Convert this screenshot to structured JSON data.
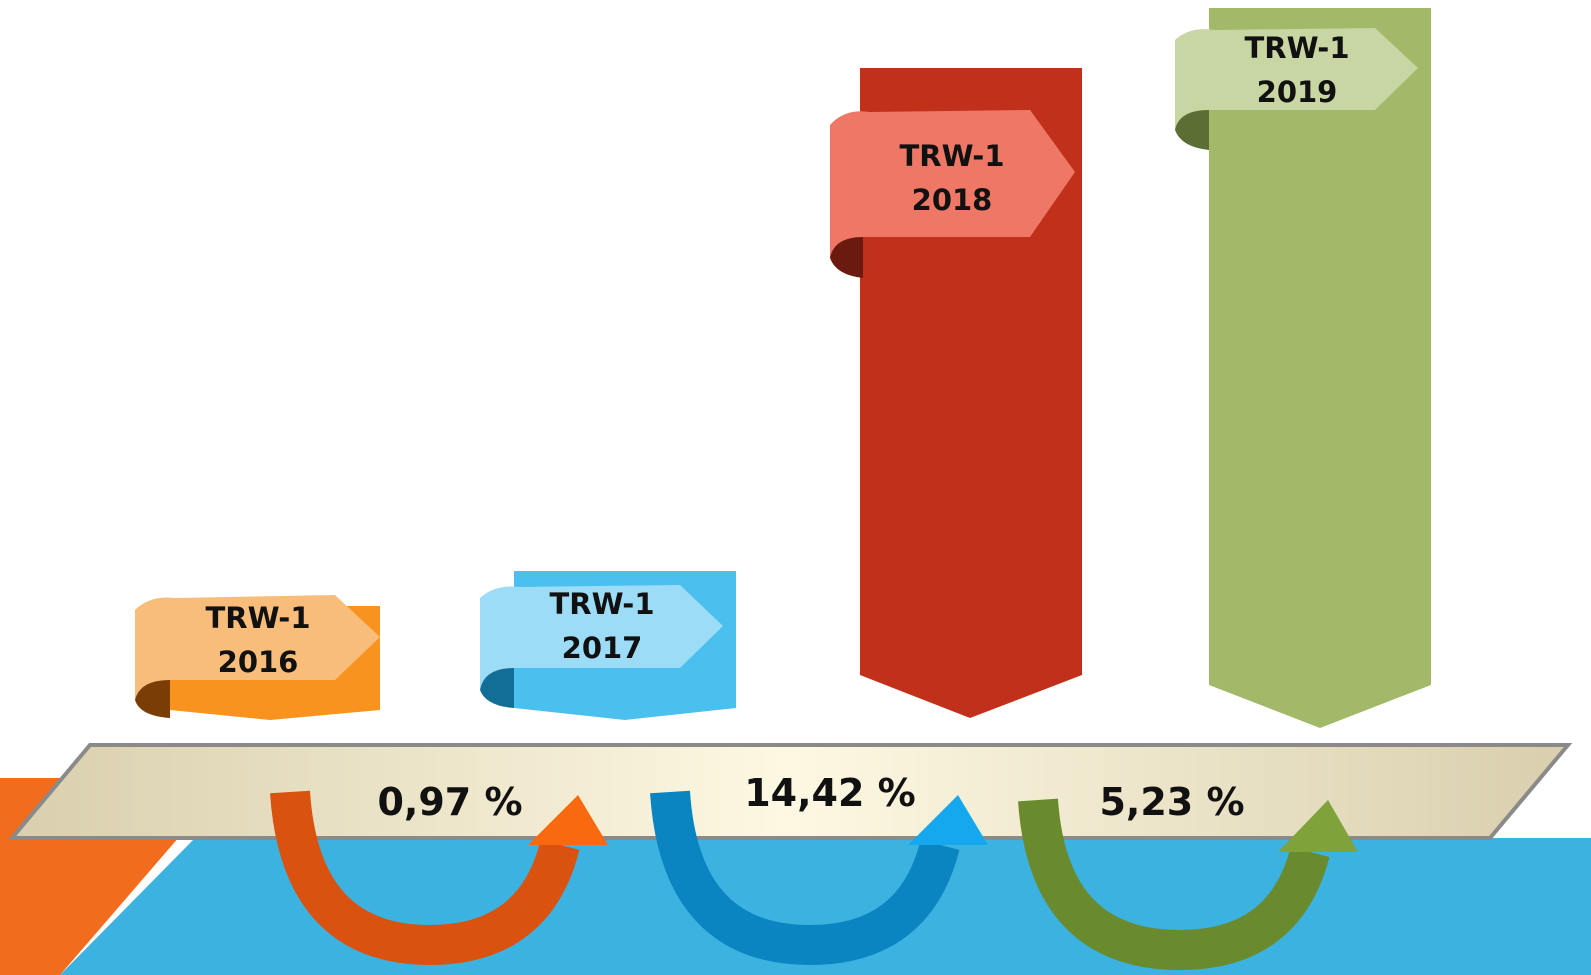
{
  "bars": [
    {
      "name": "TRW-1",
      "year": "2016"
    },
    {
      "name": "TRW-1",
      "year": "2017"
    },
    {
      "name": "TRW-1",
      "year": "2018"
    },
    {
      "name": "TRW-1",
      "year": "2019"
    }
  ],
  "growth": [
    "0,97 %",
    "14,42 %",
    "5,23 %"
  ]
}
